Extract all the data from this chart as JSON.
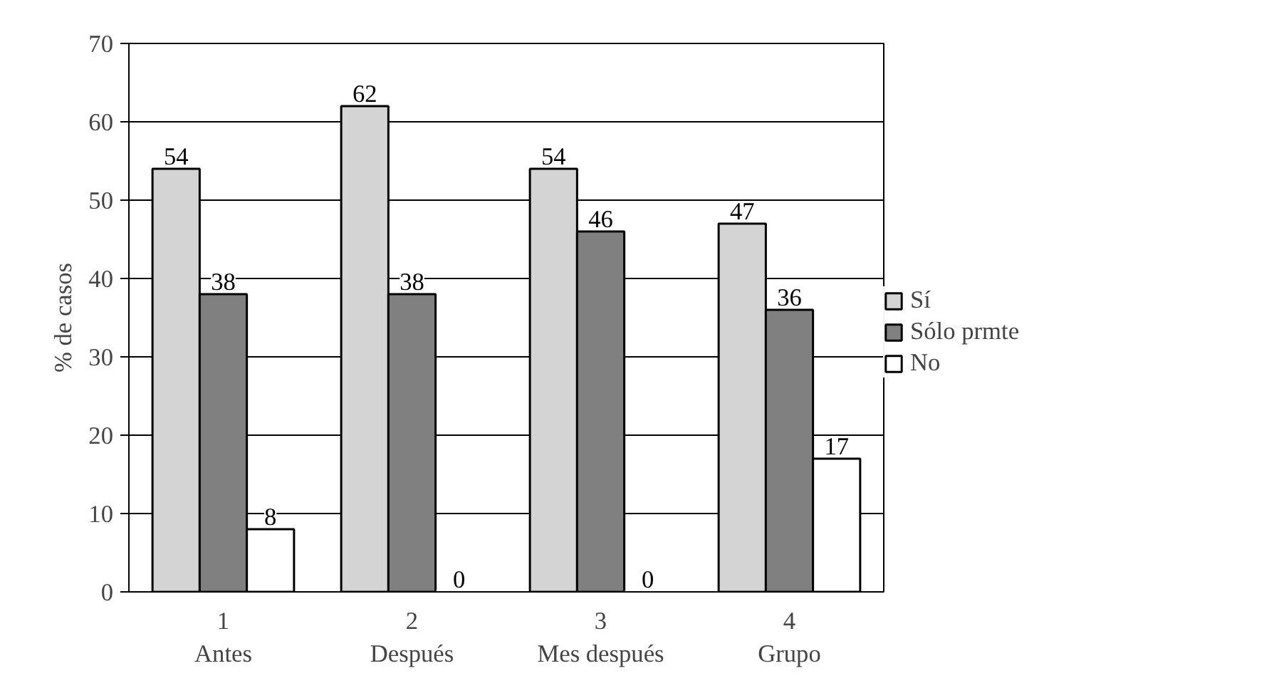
{
  "chart_data": {
    "type": "bar",
    "ylabel": "% de casos",
    "categories": [
      "1\nAntes",
      "2\nDespués",
      "3\nMes después",
      "4\nGrupo"
    ],
    "series": [
      {
        "name": "Sí",
        "color": "#d4d4d4",
        "values": [
          54,
          62,
          54,
          47
        ]
      },
      {
        "name": "Sólo prmte",
        "color": "#808080",
        "values": [
          38,
          38,
          46,
          36
        ]
      },
      {
        "name": "No",
        "color": "#ffffff",
        "values": [
          8,
          0,
          0,
          17
        ]
      }
    ],
    "ylim": [
      0,
      70
    ],
    "yticks": [
      0,
      10,
      20,
      30,
      40,
      50,
      60,
      70
    ],
    "grid": "y",
    "legend": "right",
    "data_labels": true
  }
}
